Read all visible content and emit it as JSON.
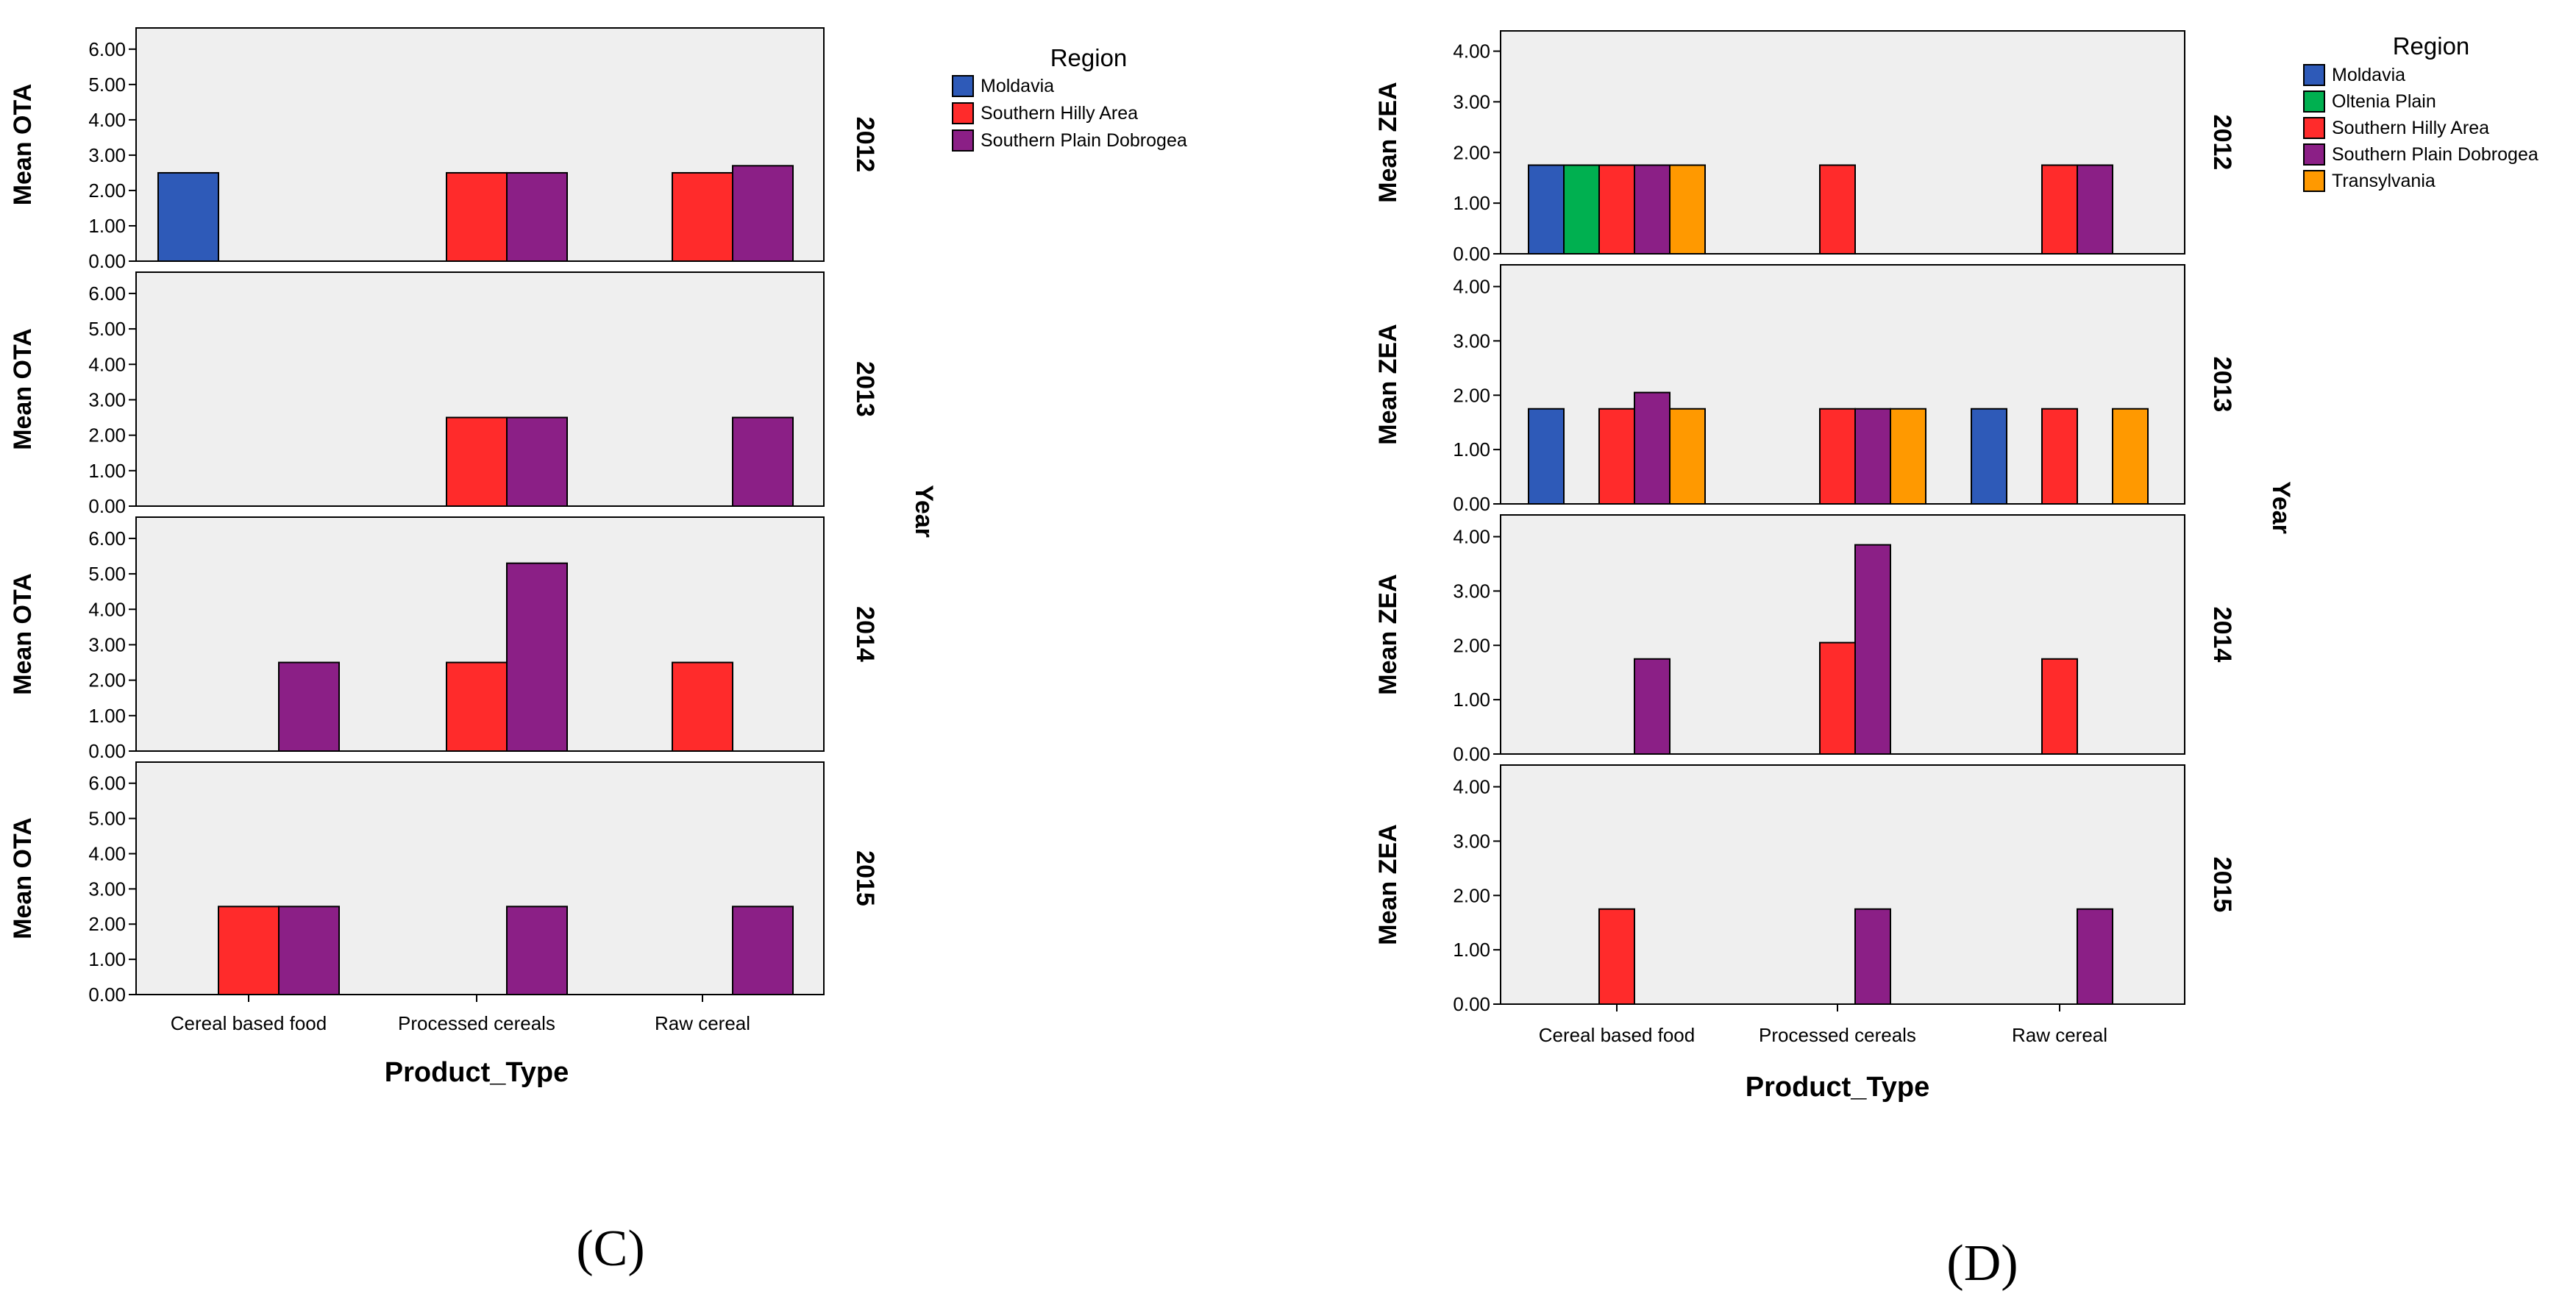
{
  "colors": {
    "Moldavia": "#2e5ab8",
    "Oltenia Plain": "#00b050",
    "Southern Hilly Area": "#ff2b2b",
    "Southern Plain Dobrogea": "#8b1f86",
    "Transylvania": "#ff9900",
    "panel_bg": "#efefef"
  },
  "chart_data": [
    {
      "id": "C",
      "type": "bar",
      "panel_label": "(C)",
      "ylabel": "Mean OTA",
      "xlabel": "Product_Type",
      "facet_label": "Year",
      "legend_title": "Region",
      "categories": [
        "Cereal based food",
        "Processed cereals",
        "Raw cereal"
      ],
      "regions": [
        "Moldavia",
        "Southern Hilly Area",
        "Southern Plain Dobrogea"
      ],
      "ylim": [
        0,
        6.6
      ],
      "yticks": [
        "0.00",
        "1.00",
        "2.00",
        "3.00",
        "4.00",
        "5.00",
        "6.00"
      ],
      "facets": [
        {
          "year": "2012",
          "series": [
            {
              "name": "Moldavia",
              "values": [
                2.5,
                null,
                null
              ]
            },
            {
              "name": "Southern Hilly Area",
              "values": [
                null,
                2.5,
                2.5
              ]
            },
            {
              "name": "Southern Plain Dobrogea",
              "values": [
                null,
                2.5,
                2.7
              ]
            }
          ]
        },
        {
          "year": "2013",
          "series": [
            {
              "name": "Moldavia",
              "values": [
                null,
                null,
                null
              ]
            },
            {
              "name": "Southern Hilly Area",
              "values": [
                null,
                2.5,
                null
              ]
            },
            {
              "name": "Southern Plain Dobrogea",
              "values": [
                null,
                2.5,
                2.5
              ]
            }
          ]
        },
        {
          "year": "2014",
          "series": [
            {
              "name": "Moldavia",
              "values": [
                null,
                null,
                null
              ]
            },
            {
              "name": "Southern Hilly Area",
              "values": [
                null,
                2.5,
                2.5
              ]
            },
            {
              "name": "Southern Plain Dobrogea",
              "values": [
                2.5,
                5.3,
                null
              ]
            }
          ]
        },
        {
          "year": "2015",
          "series": [
            {
              "name": "Moldavia",
              "values": [
                null,
                null,
                null
              ]
            },
            {
              "name": "Southern Hilly Area",
              "values": [
                2.5,
                null,
                null
              ]
            },
            {
              "name": "Southern Plain Dobrogea",
              "values": [
                2.5,
                2.5,
                2.5
              ]
            }
          ]
        }
      ]
    },
    {
      "id": "D",
      "type": "bar",
      "panel_label": "(D)",
      "ylabel": "Mean ZEA",
      "xlabel": "Product_Type",
      "facet_label": "Year",
      "legend_title": "Region",
      "categories": [
        "Cereal based food",
        "Processed cereals",
        "Raw cereal"
      ],
      "regions": [
        "Moldavia",
        "Oltenia Plain",
        "Southern Hilly Area",
        "Southern Plain Dobrogea",
        "Transylvania"
      ],
      "ylim": [
        0,
        4.4
      ],
      "yticks": [
        "0.00",
        "1.00",
        "2.00",
        "3.00",
        "4.00"
      ],
      "facets": [
        {
          "year": "2012",
          "series": [
            {
              "name": "Moldavia",
              "values": [
                1.75,
                null,
                null
              ]
            },
            {
              "name": "Oltenia Plain",
              "values": [
                1.75,
                null,
                null
              ]
            },
            {
              "name": "Southern Hilly Area",
              "values": [
                1.75,
                1.75,
                1.75
              ]
            },
            {
              "name": "Southern Plain Dobrogea",
              "values": [
                1.75,
                null,
                1.75
              ]
            },
            {
              "name": "Transylvania",
              "values": [
                1.75,
                null,
                null
              ]
            }
          ]
        },
        {
          "year": "2013",
          "series": [
            {
              "name": "Moldavia",
              "values": [
                1.75,
                null,
                1.75
              ]
            },
            {
              "name": "Oltenia Plain",
              "values": [
                null,
                null,
                null
              ]
            },
            {
              "name": "Southern Hilly Area",
              "values": [
                1.75,
                1.75,
                1.75
              ]
            },
            {
              "name": "Southern Plain Dobrogea",
              "values": [
                2.05,
                1.75,
                null
              ]
            },
            {
              "name": "Transylvania",
              "values": [
                1.75,
                1.75,
                1.75
              ]
            }
          ]
        },
        {
          "year": "2014",
          "series": [
            {
              "name": "Moldavia",
              "values": [
                null,
                null,
                null
              ]
            },
            {
              "name": "Oltenia Plain",
              "values": [
                null,
                null,
                null
              ]
            },
            {
              "name": "Southern Hilly Area",
              "values": [
                null,
                2.05,
                1.75
              ]
            },
            {
              "name": "Southern Plain Dobrogea",
              "values": [
                1.75,
                3.85,
                null
              ]
            },
            {
              "name": "Transylvania",
              "values": [
                null,
                null,
                null
              ]
            }
          ]
        },
        {
          "year": "2015",
          "series": [
            {
              "name": "Moldavia",
              "values": [
                null,
                null,
                null
              ]
            },
            {
              "name": "Oltenia Plain",
              "values": [
                null,
                null,
                null
              ]
            },
            {
              "name": "Southern Hilly Area",
              "values": [
                1.75,
                null,
                null
              ]
            },
            {
              "name": "Southern Plain Dobrogea",
              "values": [
                null,
                1.75,
                1.75
              ]
            },
            {
              "name": "Transylvania",
              "values": [
                null,
                null,
                null
              ]
            }
          ]
        }
      ]
    }
  ]
}
